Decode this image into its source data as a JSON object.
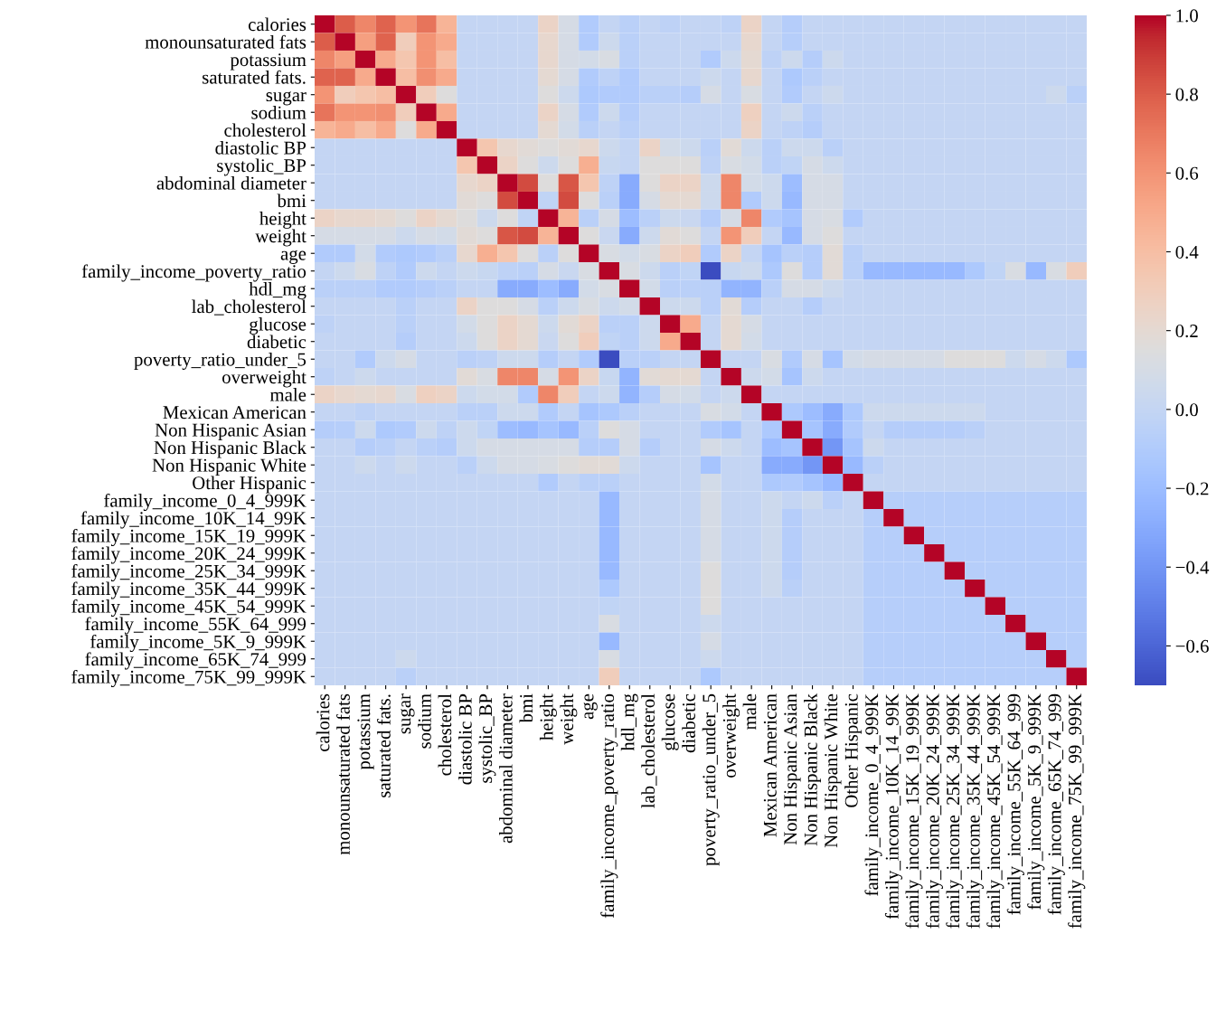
{
  "chart_data": {
    "type": "heatmap",
    "categories": [
      "calories",
      "monounsaturated fats",
      "potassium",
      "saturated fats.",
      "sugar",
      "sodium",
      "cholesterol",
      "diastolic BP",
      "systolic_BP",
      "abdominal diameter",
      "bmi",
      "height",
      "weight",
      "age",
      "family_income_poverty_ratio",
      "hdl_mg",
      "lab_cholesterol",
      "glucose",
      "diabetic",
      "poverty_ratio_under_5",
      "overweight",
      "male",
      "Mexican American",
      "Non Hispanic Asian",
      "Non Hispanic Black",
      "Non Hispanic White",
      "Other Hispanic",
      "family_income_0_4_999K",
      "family_income_10K_14_99K",
      "family_income_15K_19_999K",
      "family_income_20K_24_999K",
      "family_income_25K_34_999K",
      "family_income_35K_44_999K",
      "family_income_45K_54_999K",
      "family_income_55K_64_999",
      "family_income_5K_9_999K",
      "family_income_65K_74_999",
      "family_income_75K_99_999K"
    ],
    "y_categories": [
      "calories",
      "monounsaturated fats",
      "potassium",
      "saturated fats.",
      "sugar",
      "sodium",
      "cholesterol",
      "diastolic BP",
      "systolic_BP",
      "abdominal diameter",
      "bmi",
      "height",
      "weight",
      "age",
      "family_income_poverty_ratio",
      "hdl_mg",
      "lab_cholesterol",
      "glucose",
      "diabetic",
      "poverty_ratio_under_5",
      "overweight",
      "male",
      "Mexican American",
      "Non Hispanic Asian",
      "Non Hispanic Black",
      "Non Hispanic White",
      "Other Hispanic",
      "family_income_0_4_999K",
      "family_income_10K_14_99K",
      "family_income_15K_19_999K",
      "family_income_20K_24_999K",
      "family_income_25K_34_999K",
      "family_income_35K_44_999K",
      "family_income_45K_54_999K",
      "family_income_55K_64_999",
      "family_income_5K_9_999K",
      "family_income_65K_74_999",
      "family_income_75K_99_999K"
    ],
    "cells": [
      [
        1,
        0.8,
        0.65,
        0.78,
        0.6,
        0.72,
        0.45,
        0,
        0,
        0,
        0,
        0.25,
        0.1,
        -0.1,
        0,
        -0.05,
        0,
        -0.03,
        0,
        0,
        -0.03,
        0.25,
        0,
        -0.08,
        0,
        0,
        0,
        0,
        0,
        0,
        0,
        0,
        0,
        0,
        0,
        0,
        0,
        0
      ],
      [
        0.8,
        1,
        0.55,
        0.78,
        0.3,
        0.6,
        0.5,
        0,
        0,
        0,
        0,
        0.22,
        0.1,
        -0.1,
        0.05,
        -0.05,
        0,
        0,
        0,
        0,
        0,
        0.22,
        0,
        -0.07,
        0,
        0,
        0,
        0,
        0,
        0,
        0,
        0,
        0,
        0,
        0,
        0,
        0,
        0
      ],
      [
        0.65,
        0.55,
        1,
        0.5,
        0.35,
        0.6,
        0.4,
        0,
        0,
        0,
        0,
        0.22,
        0.1,
        0.08,
        0.12,
        -0.05,
        0,
        0,
        0,
        -0.1,
        0.05,
        0.2,
        -0.03,
        0.05,
        -0.08,
        0.05,
        0,
        0,
        0,
        0,
        0,
        0,
        0,
        0,
        0,
        0,
        0,
        0
      ],
      [
        0.78,
        0.78,
        0.5,
        1,
        0.4,
        0.62,
        0.5,
        0,
        0,
        0,
        0,
        0.2,
        0.1,
        -0.1,
        -0.03,
        -0.1,
        0,
        0,
        0,
        0.05,
        0,
        0.22,
        0,
        -0.12,
        -0.05,
        0,
        0,
        0,
        0,
        0,
        0,
        0,
        0,
        0,
        0,
        0,
        0,
        0
      ],
      [
        0.6,
        0.3,
        0.35,
        0.4,
        1,
        0.3,
        0.15,
        0,
        0,
        0,
        0,
        0.15,
        0.05,
        -0.12,
        -0.1,
        -0.1,
        -0.05,
        -0.05,
        -0.08,
        0.1,
        0,
        0.12,
        0,
        -0.1,
        0,
        0.05,
        0,
        0,
        0,
        0,
        0,
        0,
        0,
        0,
        0,
        0,
        0.05,
        -0.05
      ],
      [
        0.72,
        0.6,
        0.6,
        0.62,
        0.3,
        1,
        0.5,
        0,
        0,
        0,
        0,
        0.25,
        0.1,
        -0.1,
        0.05,
        -0.08,
        0,
        0,
        0,
        0,
        0,
        0.28,
        0,
        0.05,
        -0.05,
        0,
        0,
        0,
        0,
        0,
        0,
        0,
        0,
        0,
        0,
        0,
        0,
        0
      ],
      [
        0.45,
        0.5,
        0.4,
        0.5,
        0.15,
        0.5,
        1,
        0,
        0,
        0,
        0,
        0.2,
        0.08,
        -0.05,
        0,
        -0.05,
        0,
        0,
        0,
        0,
        0,
        0.25,
        0,
        -0.03,
        -0.08,
        0,
        0,
        0,
        0,
        0,
        0,
        0,
        0,
        0,
        0,
        0,
        0,
        0
      ],
      [
        0,
        0,
        0,
        0,
        0,
        0,
        0,
        1,
        0.35,
        0.22,
        0.18,
        0.15,
        0.18,
        0.22,
        0.05,
        0,
        0.25,
        0.08,
        0.05,
        -0.05,
        0.18,
        0.05,
        -0.05,
        0.05,
        0.05,
        -0.05,
        0,
        0,
        0,
        0,
        0,
        0,
        0,
        0,
        0,
        0,
        0,
        0
      ],
      [
        0,
        0,
        0,
        0,
        0,
        0,
        0,
        0.35,
        1,
        0.25,
        0.15,
        0.05,
        0.15,
        0.48,
        0.02,
        0,
        0.15,
        0.15,
        0.15,
        -0.03,
        0.12,
        0.08,
        -0.05,
        -0.02,
        0.1,
        0.05,
        0,
        0,
        0,
        0,
        0,
        0,
        0,
        0,
        0,
        0,
        0,
        0
      ],
      [
        0,
        0,
        0,
        0,
        0,
        0,
        0,
        0.22,
        0.25,
        1,
        0.85,
        0.15,
        0.82,
        0.35,
        -0.03,
        -0.3,
        0.15,
        0.25,
        0.25,
        0.05,
        0.65,
        0.08,
        0.05,
        -0.2,
        0.1,
        0.1,
        0,
        0,
        0,
        0,
        0,
        0,
        0,
        0,
        0,
        0,
        0,
        0
      ],
      [
        0,
        0,
        0,
        0,
        0,
        0,
        0,
        0.18,
        0.15,
        0.85,
        1,
        -0.02,
        0.85,
        0.15,
        -0.05,
        -0.3,
        0.1,
        0.2,
        0.2,
        0.05,
        0.65,
        -0.1,
        0.05,
        -0.22,
        0.1,
        0.1,
        0,
        0,
        0,
        0,
        0,
        0,
        0,
        0,
        0,
        0,
        0,
        0
      ],
      [
        0.25,
        0.22,
        0.22,
        0.2,
        0.15,
        0.25,
        0.2,
        0.15,
        0.05,
        0.15,
        -0.02,
        1,
        0.45,
        -0.05,
        0.1,
        -0.2,
        -0.05,
        0.05,
        0.03,
        -0.08,
        0.1,
        0.65,
        -0.1,
        -0.15,
        0.1,
        0.12,
        -0.1,
        0,
        0,
        0,
        0,
        0,
        0,
        0,
        0,
        0,
        0,
        0
      ],
      [
        0.1,
        0.1,
        0.1,
        0.1,
        0.05,
        0.1,
        0.08,
        0.18,
        0.15,
        0.82,
        0.85,
        0.45,
        1,
        0.15,
        0.03,
        -0.3,
        0.05,
        0.18,
        0.15,
        0,
        0.6,
        0.3,
        0,
        -0.22,
        0.1,
        0.15,
        0,
        0,
        0,
        0,
        0,
        0,
        0,
        0,
        0,
        0,
        0,
        0
      ],
      [
        -0.1,
        -0.1,
        0.08,
        -0.1,
        -0.12,
        -0.1,
        -0.05,
        0.22,
        0.48,
        0.35,
        0.15,
        -0.05,
        0.15,
        1,
        0.12,
        0.08,
        0.12,
        0.25,
        0.3,
        -0.1,
        0.25,
        0,
        -0.15,
        -0.05,
        -0.08,
        0.18,
        -0.05,
        0,
        0,
        0,
        0,
        0,
        0,
        0,
        0,
        0,
        0,
        0
      ],
      [
        0,
        0.05,
        0.12,
        -0.03,
        -0.1,
        0.05,
        0,
        0.05,
        0.02,
        -0.03,
        -0.05,
        0.1,
        0.03,
        0.12,
        1,
        0.12,
        0.05,
        -0.05,
        -0.02,
        -0.7,
        0.02,
        0.05,
        -0.12,
        0.15,
        -0.08,
        0.18,
        -0.05,
        -0.22,
        -0.22,
        -0.22,
        -0.22,
        -0.22,
        -0.12,
        -0.02,
        0.12,
        -0.22,
        0.12,
        0.3
      ],
      [
        -0.05,
        -0.05,
        -0.05,
        -0.1,
        -0.1,
        -0.08,
        -0.05,
        0,
        0,
        -0.3,
        -0.3,
        -0.2,
        -0.3,
        0.08,
        0.12,
        1,
        0.08,
        -0.05,
        -0.05,
        -0.05,
        -0.25,
        -0.25,
        -0.05,
        0.1,
        0.1,
        0.05,
        0,
        0,
        0,
        0,
        0,
        0,
        0,
        0,
        0,
        0,
        0,
        0
      ],
      [
        0,
        0,
        0,
        0,
        -0.05,
        0,
        0,
        0.25,
        0.15,
        0.15,
        0.1,
        -0.05,
        0.05,
        0.12,
        0.05,
        0.08,
        1,
        0.05,
        0.05,
        -0.05,
        0.18,
        -0.08,
        0,
        0,
        -0.08,
        0,
        0,
        0,
        0,
        0,
        0,
        0,
        0,
        0,
        0,
        0,
        0,
        0
      ],
      [
        -0.03,
        0,
        0,
        0,
        -0.05,
        0,
        0,
        0.08,
        0.15,
        0.25,
        0.2,
        0.05,
        0.18,
        0.25,
        -0.05,
        -0.05,
        0.05,
        1,
        0.5,
        0,
        0.2,
        0.1,
        0,
        0,
        0,
        0,
        0,
        0,
        0,
        0,
        0,
        0,
        0,
        0,
        0,
        0,
        0,
        0
      ],
      [
        0,
        0,
        0,
        0,
        -0.08,
        0,
        0,
        0.05,
        0.15,
        0.25,
        0.2,
        0.03,
        0.15,
        0.3,
        -0.02,
        -0.05,
        0.05,
        0.5,
        1,
        0,
        0.2,
        0.08,
        0,
        0,
        0,
        0,
        0,
        0,
        0,
        0,
        0,
        0,
        0,
        0,
        0,
        0,
        0,
        0
      ],
      [
        0,
        0,
        -0.1,
        0.05,
        0.1,
        0,
        0,
        -0.05,
        -0.03,
        0.05,
        0.05,
        -0.08,
        0,
        -0.1,
        -0.7,
        -0.05,
        -0.05,
        0,
        0,
        1,
        0,
        0,
        0.12,
        -0.1,
        0.1,
        -0.15,
        0.08,
        0.1,
        0.1,
        0.1,
        0.1,
        0.15,
        0.15,
        0.15,
        0.05,
        0.1,
        0.05,
        -0.12
      ],
      [
        -0.03,
        0,
        0.05,
        0,
        0,
        0,
        0,
        0.18,
        0.12,
        0.65,
        0.65,
        0.1,
        0.6,
        0.25,
        0.02,
        -0.25,
        0.18,
        0.2,
        0.2,
        0,
        1,
        0.05,
        0.08,
        -0.15,
        0.05,
        0,
        0,
        0,
        0,
        0,
        0,
        0,
        0,
        0,
        0,
        0,
        0,
        0
      ],
      [
        0.25,
        0.22,
        0.2,
        0.22,
        0.12,
        0.28,
        0.25,
        0.05,
        0.08,
        0.08,
        -0.1,
        0.65,
        0.3,
        0,
        0.05,
        -0.25,
        -0.08,
        0.1,
        0.08,
        0,
        0.05,
        1,
        0,
        0,
        0,
        0,
        0,
        0,
        0,
        0,
        0,
        0,
        0,
        0,
        0,
        0,
        0,
        0
      ],
      [
        0,
        0,
        -0.03,
        0,
        0,
        0,
        0,
        -0.05,
        -0.05,
        0.05,
        0.05,
        -0.1,
        0,
        -0.15,
        -0.12,
        -0.05,
        0,
        0,
        0,
        0.12,
        0.08,
        0,
        1,
        -0.12,
        -0.2,
        -0.3,
        -0.12,
        0.05,
        0.05,
        0.05,
        0.05,
        0.05,
        0.05,
        0,
        0,
        0,
        0,
        0
      ],
      [
        -0.08,
        -0.07,
        0.05,
        -0.12,
        -0.1,
        0.05,
        -0.03,
        0.05,
        -0.02,
        -0.2,
        -0.22,
        -0.15,
        -0.22,
        -0.05,
        0.15,
        0.1,
        0,
        0,
        0,
        -0.1,
        -0.15,
        0,
        -0.12,
        1,
        -0.15,
        -0.3,
        -0.1,
        0,
        -0.08,
        -0.08,
        -0.08,
        -0.08,
        -0.05,
        0,
        0,
        0,
        0,
        0
      ],
      [
        0,
        0,
        -0.08,
        -0.05,
        0,
        -0.05,
        -0.08,
        0.05,
        0.1,
        0.1,
        0.1,
        0.1,
        0.1,
        -0.08,
        -0.08,
        0.1,
        -0.08,
        0,
        0,
        0.1,
        0.05,
        0,
        -0.2,
        -0.15,
        1,
        -0.4,
        -0.15,
        0.05,
        0,
        0,
        0,
        0,
        0,
        0,
        0,
        0,
        0,
        0
      ],
      [
        0,
        0,
        0.05,
        0,
        0.05,
        0,
        0,
        -0.05,
        0.05,
        0.1,
        0.1,
        0.12,
        0.15,
        0.18,
        0.18,
        0.05,
        0,
        0,
        0,
        -0.15,
        0,
        0,
        -0.3,
        -0.3,
        -0.4,
        1,
        -0.22,
        -0.05,
        0,
        0,
        0,
        0,
        0,
        0,
        0,
        0,
        0,
        0
      ],
      [
        0,
        0,
        0,
        0,
        0,
        0,
        0,
        0,
        0,
        0,
        0,
        -0.1,
        0,
        -0.05,
        -0.05,
        0,
        0,
        0,
        0,
        0.08,
        0,
        0,
        -0.12,
        -0.1,
        -0.15,
        -0.22,
        1,
        0,
        0,
        0,
        0,
        0,
        0,
        0,
        0,
        0,
        0,
        0
      ],
      [
        0,
        0,
        0,
        0,
        0,
        0,
        0,
        0,
        0,
        0,
        0,
        0,
        0,
        0,
        -0.22,
        0,
        0,
        0,
        0,
        0.1,
        0,
        0,
        0.05,
        0,
        0.05,
        -0.05,
        0,
        1,
        -0.07,
        -0.07,
        -0.07,
        -0.07,
        -0.07,
        -0.07,
        -0.07,
        -0.07,
        -0.07,
        -0.07
      ],
      [
        0,
        0,
        0,
        0,
        0,
        0,
        0,
        0,
        0,
        0,
        0,
        0,
        0,
        0,
        -0.22,
        0,
        0,
        0,
        0,
        0.1,
        0,
        0,
        0.05,
        -0.08,
        0,
        0,
        0,
        -0.07,
        1,
        -0.07,
        -0.07,
        -0.07,
        -0.07,
        -0.07,
        -0.07,
        -0.07,
        -0.07,
        -0.07
      ],
      [
        0,
        0,
        0,
        0,
        0,
        0,
        0,
        0,
        0,
        0,
        0,
        0,
        0,
        0,
        -0.22,
        0,
        0,
        0,
        0,
        0.1,
        0,
        0,
        0.05,
        -0.08,
        0,
        0,
        0,
        -0.07,
        -0.07,
        1,
        -0.07,
        -0.07,
        -0.07,
        -0.07,
        -0.07,
        -0.07,
        -0.07,
        -0.07
      ],
      [
        0,
        0,
        0,
        0,
        0,
        0,
        0,
        0,
        0,
        0,
        0,
        0,
        0,
        0,
        -0.22,
        0,
        0,
        0,
        0,
        0.1,
        0,
        0,
        0.05,
        -0.08,
        0,
        0,
        0,
        -0.07,
        -0.07,
        -0.07,
        1,
        -0.07,
        -0.07,
        -0.07,
        -0.07,
        -0.07,
        -0.07,
        -0.07
      ],
      [
        0,
        0,
        0,
        0,
        0,
        0,
        0,
        0,
        0,
        0,
        0,
        0,
        0,
        0,
        -0.22,
        0,
        0,
        0,
        0,
        0.15,
        0,
        0,
        0.05,
        -0.08,
        0,
        0,
        0,
        -0.07,
        -0.07,
        -0.07,
        -0.07,
        1,
        -0.07,
        -0.07,
        -0.07,
        -0.07,
        -0.07,
        -0.07
      ],
      [
        0,
        0,
        0,
        0,
        0,
        0,
        0,
        0,
        0,
        0,
        0,
        0,
        0,
        0,
        -0.12,
        0,
        0,
        0,
        0,
        0.15,
        0,
        0,
        0.05,
        -0.05,
        0,
        0,
        0,
        -0.07,
        -0.07,
        -0.07,
        -0.07,
        -0.07,
        1,
        -0.07,
        -0.07,
        -0.07,
        -0.07,
        -0.07
      ],
      [
        0,
        0,
        0,
        0,
        0,
        0,
        0,
        0,
        0,
        0,
        0,
        0,
        0,
        0,
        -0.02,
        0,
        0,
        0,
        0,
        0.15,
        0,
        0,
        0,
        0,
        0,
        0,
        0,
        -0.07,
        -0.07,
        -0.07,
        -0.07,
        -0.07,
        -0.07,
        1,
        -0.07,
        -0.07,
        -0.07,
        -0.07
      ],
      [
        0,
        0,
        0,
        0,
        0,
        0,
        0,
        0,
        0,
        0,
        0,
        0,
        0,
        0,
        0.12,
        0,
        0,
        0,
        0,
        0.05,
        0,
        0,
        0,
        0,
        0,
        0,
        0,
        -0.07,
        -0.07,
        -0.07,
        -0.07,
        -0.07,
        -0.07,
        -0.07,
        1,
        -0.07,
        -0.07,
        -0.07
      ],
      [
        0,
        0,
        0,
        0,
        0,
        0,
        0,
        0,
        0,
        0,
        0,
        0,
        0,
        0,
        -0.22,
        0,
        0,
        0,
        0,
        0.1,
        0,
        0,
        0,
        0,
        0,
        0,
        0,
        -0.07,
        -0.07,
        -0.07,
        -0.07,
        -0.07,
        -0.07,
        -0.07,
        -0.07,
        1,
        -0.07,
        -0.07
      ],
      [
        0,
        0,
        0,
        0,
        0.05,
        0,
        0,
        0,
        0,
        0,
        0,
        0,
        0,
        0,
        0.12,
        0,
        0,
        0,
        0,
        0.05,
        0,
        0,
        0,
        0,
        0,
        0,
        0,
        -0.07,
        -0.07,
        -0.07,
        -0.07,
        -0.07,
        -0.07,
        -0.07,
        -0.07,
        -0.07,
        1,
        -0.07
      ],
      [
        0,
        0,
        0,
        0,
        -0.05,
        0,
        0,
        0,
        0,
        0,
        0,
        0,
        0,
        0,
        0.3,
        0,
        0,
        0,
        0,
        -0.12,
        0,
        0,
        0,
        0,
        0,
        0,
        0,
        -0.07,
        -0.07,
        -0.07,
        -0.07,
        -0.07,
        -0.07,
        -0.07,
        -0.07,
        -0.07,
        -0.07,
        1
      ]
    ],
    "clim": [
      -0.7,
      1.0
    ],
    "cticks": [
      {
        "value": -0.6,
        "label": "−0.6"
      },
      {
        "value": -0.4,
        "label": "−0.4"
      },
      {
        "value": -0.2,
        "label": "−0.2"
      },
      {
        "value": 0.0,
        "label": "0.0"
      },
      {
        "value": 0.2,
        "label": "0.2"
      },
      {
        "value": 0.4,
        "label": "0.4"
      },
      {
        "value": 0.6,
        "label": "0.6"
      },
      {
        "value": 0.8,
        "label": "0.8"
      },
      {
        "value": 1.0,
        "label": "1.0"
      }
    ]
  }
}
